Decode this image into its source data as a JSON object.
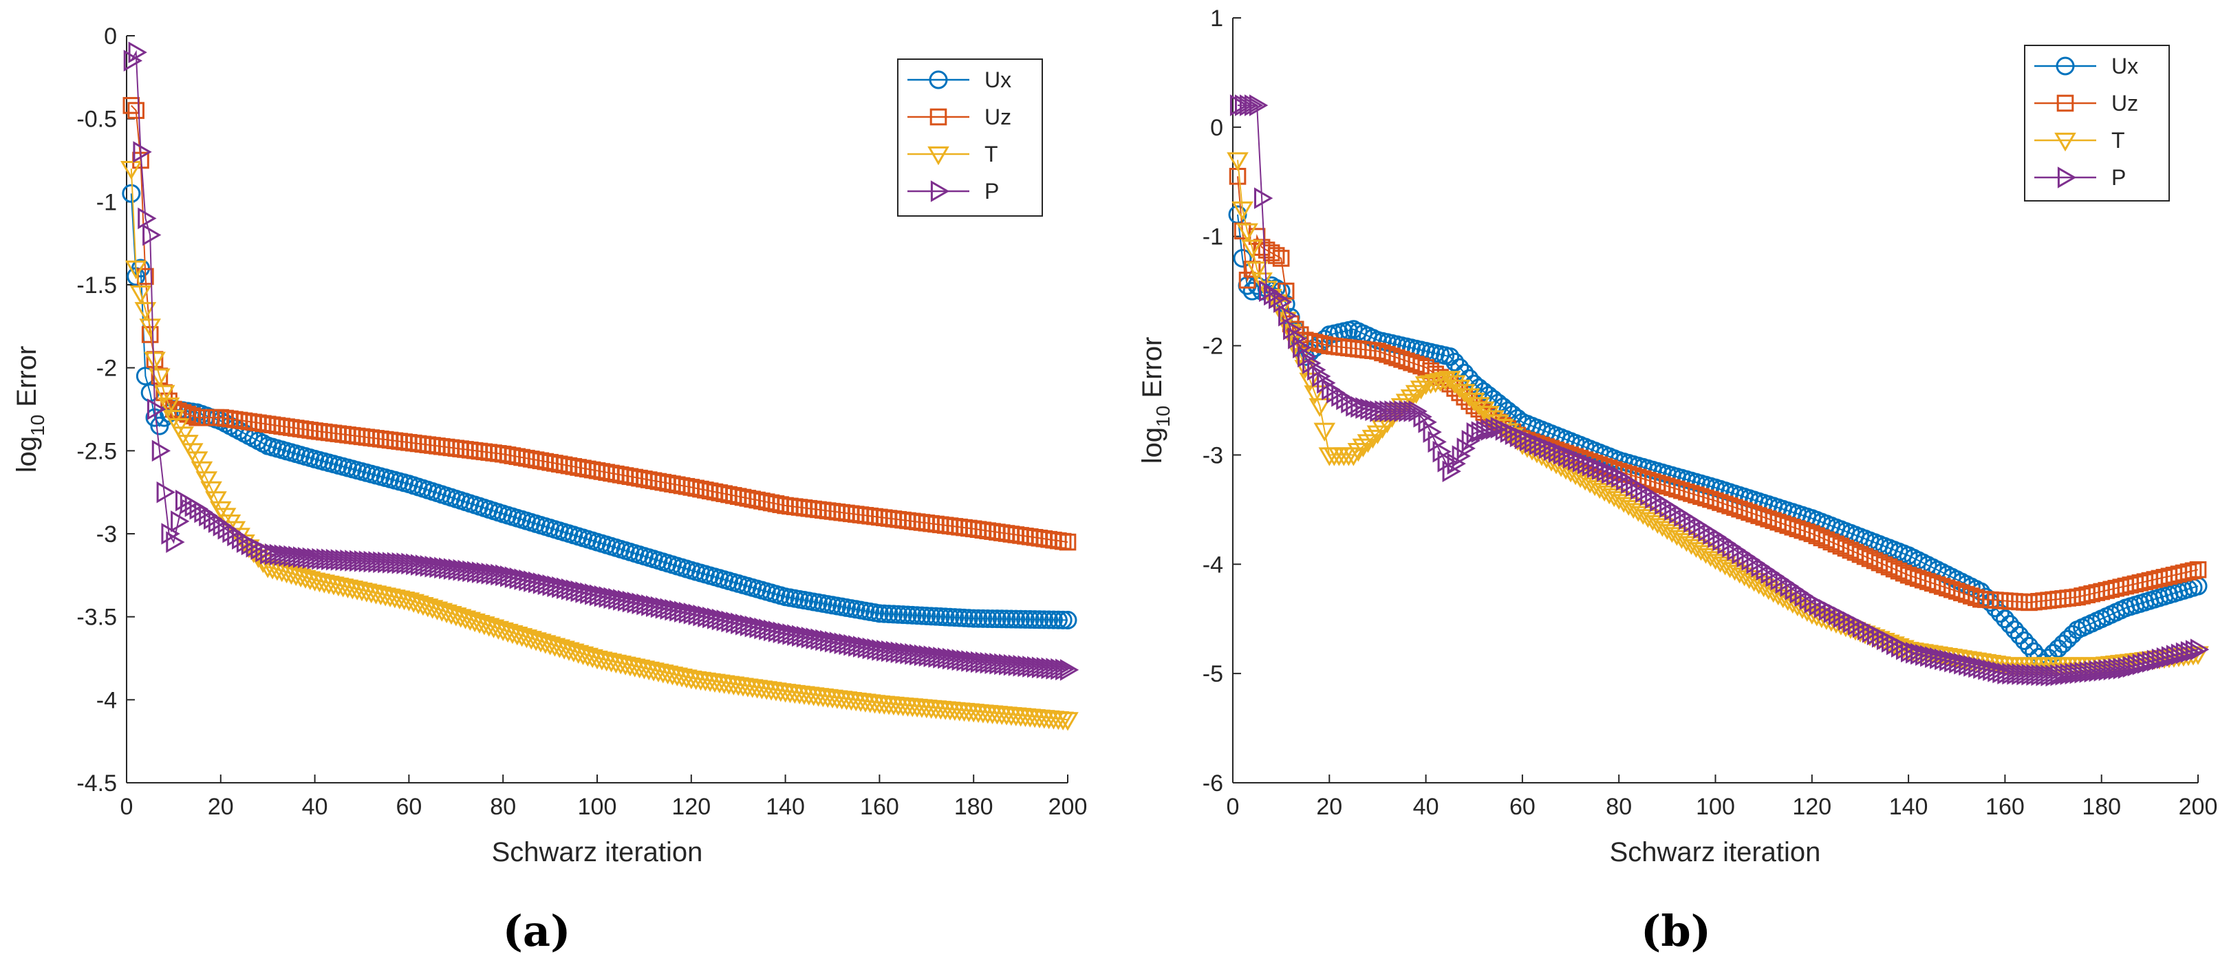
{
  "chart_data": [
    {
      "type": "line",
      "panel_label": "(a)",
      "xlabel": "Schwarz iteration",
      "ylabel_base": "log",
      "ylabel_sub": "10",
      "ylabel_rest": " Error",
      "xlim": [
        0,
        200
      ],
      "ylim": [
        -4.5,
        0
      ],
      "xticks": [
        "0",
        "20",
        "40",
        "60",
        "80",
        "100",
        "120",
        "140",
        "160",
        "180",
        "200"
      ],
      "yticks": [
        "0",
        "-0.5",
        "-1",
        "-1.5",
        "-2",
        "-2.5",
        "-3",
        "-3.5",
        "-4",
        "-4.5"
      ],
      "legend_position": "top-right",
      "series": [
        {
          "name": "Ux",
          "marker": "circle",
          "color": "#0072BD",
          "points": [
            [
              1,
              -0.95
            ],
            [
              2,
              -1.45
            ],
            [
              3,
              -1.4
            ],
            [
              4,
              -2.05
            ],
            [
              5,
              -2.15
            ],
            [
              6,
              -2.3
            ],
            [
              7,
              -2.35
            ],
            [
              8,
              -2.3
            ],
            [
              10,
              -2.25
            ],
            [
              15,
              -2.27
            ],
            [
              20,
              -2.32
            ],
            [
              30,
              -2.47
            ],
            [
              40,
              -2.55
            ],
            [
              60,
              -2.7
            ],
            [
              80,
              -2.88
            ],
            [
              100,
              -3.05
            ],
            [
              120,
              -3.22
            ],
            [
              140,
              -3.38
            ],
            [
              160,
              -3.48
            ],
            [
              180,
              -3.51
            ],
            [
              200,
              -3.52
            ]
          ]
        },
        {
          "name": "Uz",
          "marker": "square",
          "color": "#D95319",
          "points": [
            [
              1,
              -0.42
            ],
            [
              2,
              -0.45
            ],
            [
              3,
              -0.75
            ],
            [
              4,
              -1.45
            ],
            [
              5,
              -1.8
            ],
            [
              6,
              -1.95
            ],
            [
              7,
              -2.05
            ],
            [
              8,
              -2.15
            ],
            [
              10,
              -2.25
            ],
            [
              15,
              -2.3
            ],
            [
              20,
              -2.3
            ],
            [
              40,
              -2.38
            ],
            [
              60,
              -2.45
            ],
            [
              80,
              -2.52
            ],
            [
              100,
              -2.62
            ],
            [
              120,
              -2.72
            ],
            [
              140,
              -2.83
            ],
            [
              160,
              -2.9
            ],
            [
              180,
              -2.97
            ],
            [
              200,
              -3.05
            ]
          ]
        },
        {
          "name": "T",
          "marker": "triangle-down",
          "color": "#EDB120",
          "points": [
            [
              1,
              -0.8
            ],
            [
              2,
              -1.4
            ],
            [
              3,
              -1.55
            ],
            [
              4,
              -1.65
            ],
            [
              5,
              -1.75
            ],
            [
              6,
              -1.95
            ],
            [
              7,
              -2.05
            ],
            [
              8,
              -2.15
            ],
            [
              10,
              -2.3
            ],
            [
              15,
              -2.55
            ],
            [
              20,
              -2.85
            ],
            [
              25,
              -3.05
            ],
            [
              30,
              -3.2
            ],
            [
              40,
              -3.28
            ],
            [
              60,
              -3.4
            ],
            [
              80,
              -3.58
            ],
            [
              100,
              -3.75
            ],
            [
              120,
              -3.87
            ],
            [
              140,
              -3.95
            ],
            [
              160,
              -4.02
            ],
            [
              180,
              -4.07
            ],
            [
              200,
              -4.12
            ]
          ]
        },
        {
          "name": "P",
          "marker": "triangle-right",
          "color": "#7E2F8E",
          "points": [
            [
              1,
              -0.15
            ],
            [
              2,
              -0.1
            ],
            [
              3,
              -0.7
            ],
            [
              4,
              -1.1
            ],
            [
              5,
              -1.2
            ],
            [
              6,
              -2.25
            ],
            [
              7,
              -2.5
            ],
            [
              8,
              -2.75
            ],
            [
              9,
              -3.0
            ],
            [
              10,
              -3.05
            ],
            [
              12,
              -2.8
            ],
            [
              15,
              -2.85
            ],
            [
              20,
              -2.95
            ],
            [
              25,
              -3.05
            ],
            [
              30,
              -3.12
            ],
            [
              40,
              -3.15
            ],
            [
              60,
              -3.18
            ],
            [
              80,
              -3.25
            ],
            [
              100,
              -3.37
            ],
            [
              120,
              -3.48
            ],
            [
              140,
              -3.6
            ],
            [
              160,
              -3.7
            ],
            [
              180,
              -3.77
            ],
            [
              200,
              -3.82
            ]
          ]
        }
      ]
    },
    {
      "type": "line",
      "panel_label": "(b)",
      "xlabel": "Schwarz iteration",
      "ylabel_base": "log",
      "ylabel_sub": "10",
      "ylabel_rest": " Error",
      "xlim": [
        0,
        200
      ],
      "ylim": [
        -6,
        1
      ],
      "xticks": [
        "0",
        "20",
        "40",
        "60",
        "80",
        "100",
        "120",
        "140",
        "160",
        "180",
        "200"
      ],
      "yticks": [
        "1",
        "0",
        "-1",
        "-2",
        "-3",
        "-4",
        "-5",
        "-6"
      ],
      "legend_position": "top-right",
      "series": [
        {
          "name": "Ux",
          "marker": "circle",
          "color": "#0072BD",
          "points": [
            [
              1,
              -0.8
            ],
            [
              2,
              -1.2
            ],
            [
              3,
              -1.45
            ],
            [
              4,
              -1.5
            ],
            [
              5,
              -1.45
            ],
            [
              6,
              -1.5
            ],
            [
              8,
              -1.45
            ],
            [
              10,
              -1.5
            ],
            [
              15,
              -2.1
            ],
            [
              20,
              -1.9
            ],
            [
              25,
              -1.85
            ],
            [
              30,
              -1.95
            ],
            [
              40,
              -2.05
            ],
            [
              45,
              -2.1
            ],
            [
              50,
              -2.35
            ],
            [
              60,
              -2.7
            ],
            [
              80,
              -3.05
            ],
            [
              100,
              -3.3
            ],
            [
              120,
              -3.58
            ],
            [
              140,
              -3.92
            ],
            [
              155,
              -4.25
            ],
            [
              160,
              -4.5
            ],
            [
              168,
              -4.9
            ],
            [
              175,
              -4.6
            ],
            [
              185,
              -4.4
            ],
            [
              200,
              -4.2
            ]
          ]
        },
        {
          "name": "Uz",
          "marker": "square",
          "color": "#D95319",
          "points": [
            [
              1,
              -0.45
            ],
            [
              2,
              -0.95
            ],
            [
              3,
              -1.4
            ],
            [
              4,
              -1.3
            ],
            [
              5,
              -1.0
            ],
            [
              6,
              -1.1
            ],
            [
              8,
              -1.15
            ],
            [
              10,
              -1.2
            ],
            [
              12,
              -1.8
            ],
            [
              15,
              -1.95
            ],
            [
              20,
              -2.0
            ],
            [
              30,
              -2.05
            ],
            [
              40,
              -2.2
            ],
            [
              45,
              -2.35
            ],
            [
              50,
              -2.55
            ],
            [
              60,
              -2.85
            ],
            [
              80,
              -3.15
            ],
            [
              100,
              -3.42
            ],
            [
              120,
              -3.72
            ],
            [
              140,
              -4.1
            ],
            [
              155,
              -4.32
            ],
            [
              165,
              -4.35
            ],
            [
              175,
              -4.3
            ],
            [
              185,
              -4.2
            ],
            [
              200,
              -4.05
            ]
          ]
        },
        {
          "name": "T",
          "marker": "triangle-down",
          "color": "#EDB120",
          "points": [
            [
              1,
              -0.3
            ],
            [
              2,
              -0.75
            ],
            [
              3,
              -0.95
            ],
            [
              4,
              -1.1
            ],
            [
              5,
              -1.3
            ],
            [
              6,
              -1.4
            ],
            [
              8,
              -1.55
            ],
            [
              10,
              -1.65
            ],
            [
              15,
              -2.2
            ],
            [
              18,
              -2.55
            ],
            [
              20,
              -3.0
            ],
            [
              25,
              -3.0
            ],
            [
              30,
              -2.8
            ],
            [
              35,
              -2.55
            ],
            [
              40,
              -2.35
            ],
            [
              45,
              -2.3
            ],
            [
              50,
              -2.5
            ],
            [
              60,
              -2.9
            ],
            [
              80,
              -3.4
            ],
            [
              100,
              -3.95
            ],
            [
              120,
              -4.45
            ],
            [
              140,
              -4.78
            ],
            [
              160,
              -4.92
            ],
            [
              180,
              -4.92
            ],
            [
              200,
              -4.82
            ]
          ]
        },
        {
          "name": "P",
          "marker": "triangle-right",
          "color": "#7E2F8E",
          "points": [
            [
              1,
              0.2
            ],
            [
              3,
              0.2
            ],
            [
              5,
              0.2
            ],
            [
              7,
              -1.5
            ],
            [
              10,
              -1.6
            ],
            [
              12,
              -1.85
            ],
            [
              15,
              -2.1
            ],
            [
              20,
              -2.4
            ],
            [
              25,
              -2.55
            ],
            [
              30,
              -2.6
            ],
            [
              35,
              -2.6
            ],
            [
              38,
              -2.6
            ],
            [
              40,
              -2.7
            ],
            [
              45,
              -3.15
            ],
            [
              50,
              -2.8
            ],
            [
              55,
              -2.75
            ],
            [
              60,
              -2.85
            ],
            [
              80,
              -3.2
            ],
            [
              100,
              -3.75
            ],
            [
              120,
              -4.35
            ],
            [
              140,
              -4.8
            ],
            [
              160,
              -5.0
            ],
            [
              170,
              -5.02
            ],
            [
              185,
              -4.95
            ],
            [
              200,
              -4.78
            ]
          ]
        }
      ]
    }
  ]
}
